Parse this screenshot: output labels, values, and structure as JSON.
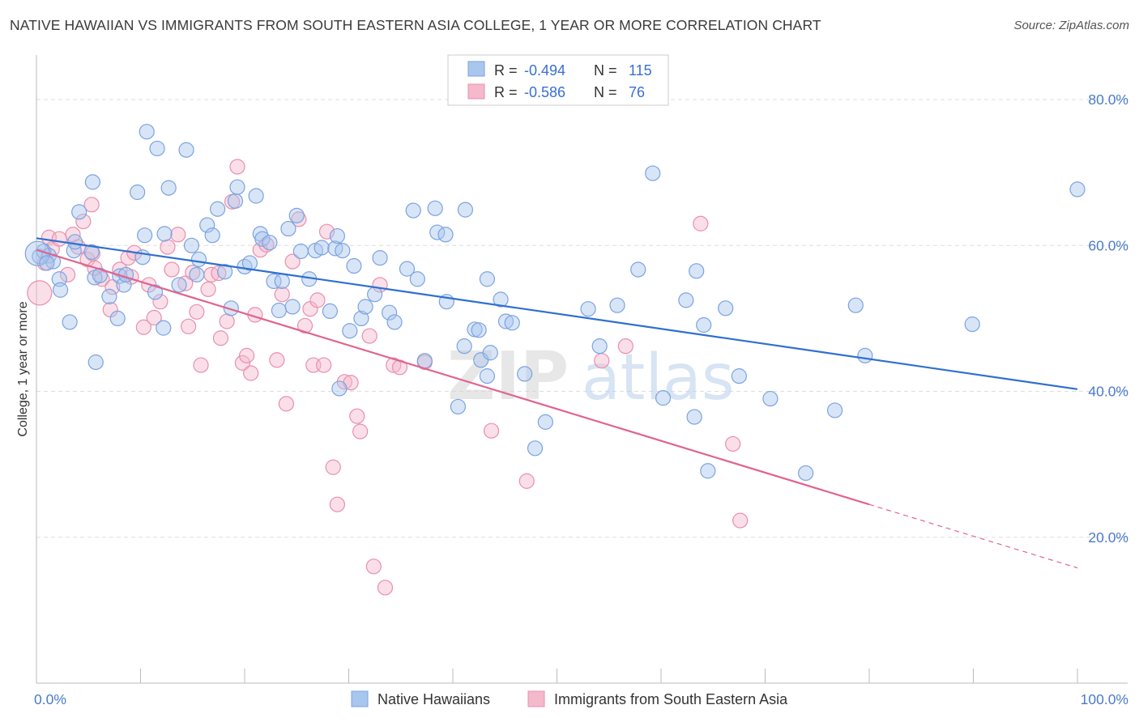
{
  "title": "NATIVE HAWAIIAN VS IMMIGRANTS FROM SOUTH EASTERN ASIA COLLEGE, 1 YEAR OR MORE CORRELATION CHART",
  "source": "Source: ZipAtlas.com",
  "watermark": "ZIPatlas",
  "colors": {
    "blue_fill": "#a9c6ee",
    "blue_stroke": "#7aa3e0",
    "blue_line": "#2f6fd0",
    "pink_fill": "#f4b9cb",
    "pink_stroke": "#e98fac",
    "pink_line": "#e0648f",
    "grid": "#dddddd",
    "tick_text": "#4a7bc9"
  },
  "legend": {
    "rows": [
      {
        "r_label": "R = ",
        "r_value": "-0.494",
        "n_label": "N = ",
        "n_value": "115"
      },
      {
        "r_label": "R = ",
        "r_value": "-0.586",
        "n_label": "N = ",
        "n_value": "76"
      }
    ]
  },
  "chart_data": {
    "type": "scatter",
    "title": "NATIVE HAWAIIAN VS IMMIGRANTS FROM SOUTH EASTERN ASIA COLLEGE, 1 YEAR OR MORE CORRELATION CHART",
    "ylabel": "College, 1 year or more",
    "xlabel": "",
    "xlim": [
      0,
      100
    ],
    "ylim": [
      0,
      85
    ],
    "x_tick_labels": [
      "0.0%",
      "100.0%"
    ],
    "y_ticks": [
      20,
      40,
      60,
      80
    ],
    "y_tick_labels": [
      "20.0%",
      "40.0%",
      "60.0%",
      "80.0%"
    ],
    "grid": true,
    "legend_position": "top-center",
    "series": [
      {
        "name": "Native Hawaiians",
        "color": "#a9c6ee",
        "r": -0.494,
        "n": 115,
        "trend": {
          "x": [
            0,
            100
          ],
          "y": [
            61.0,
            40.3
          ]
        },
        "points": [
          [
            0.3,
            58.5
          ],
          [
            0.7,
            59.2
          ],
          [
            1.2,
            58.6
          ],
          [
            1.6,
            57.8
          ],
          [
            2.2,
            55.4
          ],
          [
            2.3,
            53.9
          ],
          [
            3.2,
            49.5
          ],
          [
            3.6,
            59.3
          ],
          [
            3.7,
            60.5
          ],
          [
            4.1,
            64.6
          ],
          [
            5.3,
            59.1
          ],
          [
            5.4,
            68.7
          ],
          [
            5.6,
            55.6
          ],
          [
            5.7,
            44.0
          ],
          [
            7.0,
            53.0
          ],
          [
            7.8,
            50.0
          ],
          [
            8.0,
            55.8
          ],
          [
            8.4,
            54.6
          ],
          [
            8.6,
            56.0
          ],
          [
            9.7,
            67.3
          ],
          [
            10.2,
            58.4
          ],
          [
            10.4,
            61.4
          ],
          [
            10.6,
            75.6
          ],
          [
            11.4,
            53.6
          ],
          [
            11.6,
            73.3
          ],
          [
            12.2,
            48.7
          ],
          [
            12.3,
            61.6
          ],
          [
            12.7,
            67.9
          ],
          [
            13.7,
            54.6
          ],
          [
            14.4,
            73.1
          ],
          [
            14.9,
            60.0
          ],
          [
            15.4,
            56.0
          ],
          [
            15.6,
            58.1
          ],
          [
            16.4,
            62.8
          ],
          [
            16.9,
            61.4
          ],
          [
            17.4,
            65.0
          ],
          [
            18.1,
            56.4
          ],
          [
            18.7,
            51.4
          ],
          [
            19.1,
            66.1
          ],
          [
            19.3,
            68.0
          ],
          [
            20.0,
            57.1
          ],
          [
            20.5,
            57.6
          ],
          [
            21.1,
            66.8
          ],
          [
            21.5,
            61.6
          ],
          [
            21.7,
            60.9
          ],
          [
            22.4,
            60.4
          ],
          [
            22.8,
            55.1
          ],
          [
            23.3,
            51.1
          ],
          [
            23.6,
            55.1
          ],
          [
            24.2,
            62.3
          ],
          [
            24.6,
            51.6
          ],
          [
            25.0,
            64.1
          ],
          [
            25.4,
            59.2
          ],
          [
            26.2,
            55.4
          ],
          [
            26.8,
            59.3
          ],
          [
            27.4,
            59.7
          ],
          [
            28.2,
            51.0
          ],
          [
            28.7,
            59.6
          ],
          [
            28.9,
            61.3
          ],
          [
            29.1,
            40.4
          ],
          [
            29.4,
            59.3
          ],
          [
            30.1,
            48.3
          ],
          [
            30.5,
            57.2
          ],
          [
            31.2,
            50.0
          ],
          [
            31.6,
            51.6
          ],
          [
            32.5,
            53.3
          ],
          [
            33.0,
            58.3
          ],
          [
            33.9,
            50.8
          ],
          [
            34.4,
            49.5
          ],
          [
            35.6,
            56.8
          ],
          [
            36.2,
            64.8
          ],
          [
            36.6,
            55.4
          ],
          [
            37.3,
            44.2
          ],
          [
            38.3,
            65.1
          ],
          [
            38.5,
            61.8
          ],
          [
            39.3,
            61.5
          ],
          [
            39.4,
            52.3
          ],
          [
            40.5,
            37.9
          ],
          [
            41.1,
            46.2
          ],
          [
            41.2,
            64.9
          ],
          [
            42.1,
            48.5
          ],
          [
            42.5,
            48.4
          ],
          [
            42.7,
            44.3
          ],
          [
            43.3,
            55.4
          ],
          [
            43.3,
            42.1
          ],
          [
            43.6,
            45.3
          ],
          [
            44.6,
            52.6
          ],
          [
            45.1,
            49.6
          ],
          [
            45.7,
            49.4
          ],
          [
            46.9,
            42.4
          ],
          [
            47.9,
            32.2
          ],
          [
            48.9,
            35.8
          ],
          [
            53.0,
            51.3
          ],
          [
            54.1,
            46.2
          ],
          [
            55.8,
            51.8
          ],
          [
            57.8,
            56.7
          ],
          [
            59.2,
            69.9
          ],
          [
            60.2,
            39.1
          ],
          [
            62.4,
            52.5
          ],
          [
            63.4,
            56.5
          ],
          [
            63.2,
            36.5
          ],
          [
            64.1,
            49.1
          ],
          [
            64.5,
            29.1
          ],
          [
            66.2,
            51.4
          ],
          [
            67.5,
            42.1
          ],
          [
            70.5,
            39.0
          ],
          [
            73.9,
            28.8
          ],
          [
            76.7,
            37.4
          ],
          [
            78.7,
            51.8
          ],
          [
            79.6,
            44.9
          ],
          [
            89.9,
            49.2
          ],
          [
            100.0,
            67.7
          ],
          [
            0.1,
            58.9
          ],
          [
            1.0,
            57.6
          ],
          [
            6.1,
            55.9
          ]
        ]
      },
      {
        "name": "Immigrants from South Eastern Asia",
        "color": "#f4b9cb",
        "r": -0.586,
        "n": 76,
        "trend": {
          "x": [
            0,
            80
          ],
          "y": [
            59.4,
            24.5
          ]
        },
        "trend_dashed": {
          "x": [
            80,
            100
          ],
          "y": [
            24.5,
            15.8
          ]
        },
        "points": [
          [
            0.3,
            53.5
          ],
          [
            0.8,
            57.6
          ],
          [
            1.2,
            61.1
          ],
          [
            1.5,
            59.5
          ],
          [
            2.2,
            60.9
          ],
          [
            3.0,
            56.0
          ],
          [
            3.5,
            61.5
          ],
          [
            4.0,
            59.8
          ],
          [
            4.5,
            63.3
          ],
          [
            4.9,
            58.1
          ],
          [
            5.4,
            58.9
          ],
          [
            5.6,
            56.9
          ],
          [
            5.3,
            65.6
          ],
          [
            6.3,
            55.4
          ],
          [
            7.1,
            51.2
          ],
          [
            7.3,
            54.3
          ],
          [
            8.0,
            56.7
          ],
          [
            8.8,
            58.3
          ],
          [
            9.1,
            55.7
          ],
          [
            9.4,
            59.0
          ],
          [
            10.3,
            48.8
          ],
          [
            10.8,
            54.6
          ],
          [
            11.3,
            50.1
          ],
          [
            11.9,
            52.3
          ],
          [
            12.6,
            59.8
          ],
          [
            13.0,
            56.7
          ],
          [
            13.6,
            61.5
          ],
          [
            14.3,
            54.8
          ],
          [
            14.6,
            48.9
          ],
          [
            15.0,
            56.3
          ],
          [
            15.4,
            50.9
          ],
          [
            15.8,
            43.6
          ],
          [
            16.5,
            54.0
          ],
          [
            16.8,
            56.0
          ],
          [
            17.5,
            56.2
          ],
          [
            17.7,
            47.3
          ],
          [
            18.3,
            49.6
          ],
          [
            18.8,
            66.0
          ],
          [
            19.3,
            70.8
          ],
          [
            19.8,
            43.9
          ],
          [
            20.2,
            44.9
          ],
          [
            20.6,
            42.5
          ],
          [
            21.0,
            50.5
          ],
          [
            21.5,
            59.4
          ],
          [
            22.1,
            60.1
          ],
          [
            23.1,
            44.3
          ],
          [
            23.6,
            53.3
          ],
          [
            24.0,
            38.3
          ],
          [
            24.6,
            57.8
          ],
          [
            25.2,
            63.6
          ],
          [
            25.8,
            49.0
          ],
          [
            26.3,
            51.3
          ],
          [
            26.6,
            43.6
          ],
          [
            27.0,
            52.5
          ],
          [
            27.6,
            43.6
          ],
          [
            27.9,
            61.9
          ],
          [
            28.5,
            29.6
          ],
          [
            28.9,
            24.5
          ],
          [
            29.6,
            41.3
          ],
          [
            30.2,
            41.2
          ],
          [
            30.8,
            36.6
          ],
          [
            31.1,
            34.5
          ],
          [
            32.0,
            47.6
          ],
          [
            32.4,
            16.0
          ],
          [
            33.0,
            54.6
          ],
          [
            33.5,
            13.1
          ],
          [
            34.3,
            43.6
          ],
          [
            34.9,
            43.3
          ],
          [
            37.3,
            44.0
          ],
          [
            43.7,
            34.6
          ],
          [
            47.1,
            27.7
          ],
          [
            54.3,
            44.2
          ],
          [
            56.6,
            46.2
          ],
          [
            63.8,
            63.0
          ],
          [
            66.9,
            32.8
          ],
          [
            67.6,
            22.3
          ]
        ]
      }
    ]
  },
  "bottom_legend": [
    {
      "label": "Native Hawaiians"
    },
    {
      "label": "Immigrants from South Eastern Asia"
    }
  ]
}
